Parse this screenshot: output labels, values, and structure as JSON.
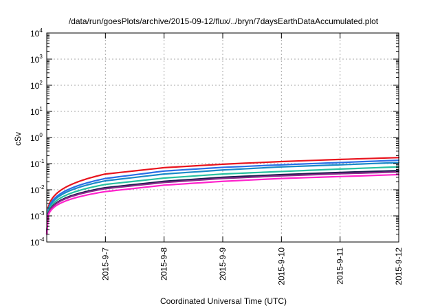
{
  "chart_data": {
    "type": "line",
    "title": "/data/run/goesPlots/archive/2015-09-12/flux/../bryn/7daysEarthDataAccumulated.plot",
    "xlabel": "Coordinated Universal Time (UTC)",
    "ylabel": "cSv",
    "y_scale": "log",
    "ylim": [
      0.0001,
      10000
    ],
    "xlim": [
      "2015-09-06",
      "2015-09-12"
    ],
    "x_ticks": [
      "2015-9-7",
      "2015-9-8",
      "2015-9-9",
      "2015-9-10",
      "2015-9-11",
      "2015-9-12"
    ],
    "y_ticks": [
      {
        "base": "10",
        "exp": "-4"
      },
      {
        "base": "10",
        "exp": "-3"
      },
      {
        "base": "10",
        "exp": "-2"
      },
      {
        "base": "10",
        "exp": "-1"
      },
      {
        "base": "10",
        "exp": "0"
      },
      {
        "base": "10",
        "exp": "1"
      },
      {
        "base": "10",
        "exp": "2"
      },
      {
        "base": "10",
        "exp": "3"
      },
      {
        "base": "10",
        "exp": "4"
      }
    ],
    "grid": true,
    "x": [
      "2015-09-06",
      "2015-09-07",
      "2015-09-08",
      "2015-09-09",
      "2015-09-10",
      "2015-09-11",
      "2015-09-12"
    ],
    "series": [
      {
        "color": "#e8141e",
        "values": [
          0.0002,
          0.04,
          0.07,
          0.095,
          0.12,
          0.145,
          0.17
        ]
      },
      {
        "color": "#2a6ee6",
        "values": [
          0.0002,
          0.027,
          0.052,
          0.072,
          0.09,
          0.11,
          0.135
        ]
      },
      {
        "color": "#1a8ac8",
        "values": [
          0.0002,
          0.022,
          0.04,
          0.057,
          0.075,
          0.09,
          0.11
        ]
      },
      {
        "color": "#27c0a0",
        "values": [
          0.0002,
          0.016,
          0.028,
          0.04,
          0.05,
          0.062,
          0.075
        ]
      },
      {
        "color": "#1e1e50",
        "values": [
          0.0002,
          0.012,
          0.021,
          0.03,
          0.038,
          0.046,
          0.054
        ]
      },
      {
        "color": "#8a2b8a",
        "values": [
          0.0002,
          0.011,
          0.019,
          0.027,
          0.034,
          0.041,
          0.048
        ]
      },
      {
        "color": "#ff22cc",
        "values": [
          0.0002,
          0.0085,
          0.015,
          0.021,
          0.027,
          0.032,
          0.038
        ]
      }
    ]
  }
}
